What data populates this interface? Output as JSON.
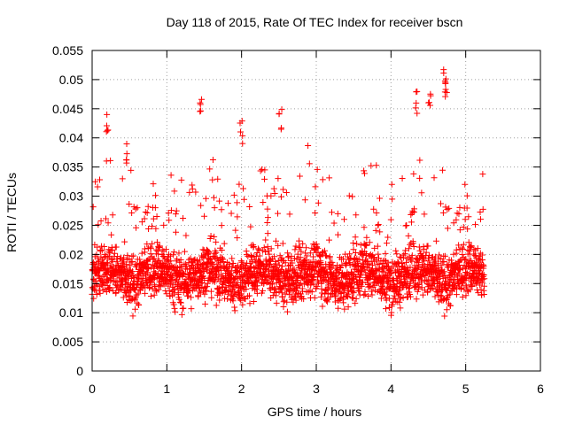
{
  "chart_data": {
    "type": "scatter",
    "title": "Day 118 of 2015, Rate Of TEC Index for receiver bscn",
    "xlabel": "GPS time / hours",
    "ylabel": "ROTI / TECUs",
    "xlim": [
      0,
      6
    ],
    "ylim": [
      0,
      0.055
    ],
    "xticks": [
      "0",
      "1",
      "2",
      "3",
      "4",
      "5",
      "6"
    ],
    "yticks": [
      "0",
      "0.005",
      "0.01",
      "0.015",
      "0.02",
      "0.025",
      "0.03",
      "0.035",
      "0.04",
      "0.045",
      "0.05",
      "0.055"
    ],
    "grid": true,
    "marker": "+",
    "series": [
      {
        "name": "ROTI",
        "color": "#ff0000",
        "x_range": [
          0,
          5.25
        ],
        "typical_range": [
          0.008,
          0.025
        ],
        "notable_points": [
          {
            "x": 0.21,
            "y": 0.044
          },
          {
            "x": 0.45,
            "y": 0.039
          },
          {
            "x": 1.45,
            "y": 0.047
          },
          {
            "x": 2.0,
            "y": 0.043
          },
          {
            "x": 2.52,
            "y": 0.045
          },
          {
            "x": 4.35,
            "y": 0.048
          },
          {
            "x": 4.52,
            "y": 0.048
          },
          {
            "x": 4.72,
            "y": 0.052
          },
          {
            "x": 4.73,
            "y": 0.05
          }
        ]
      }
    ]
  }
}
